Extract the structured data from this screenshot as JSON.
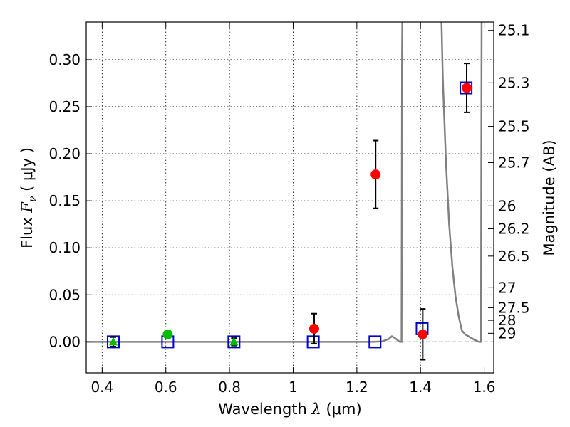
{
  "chart_data": {
    "type": "scatter",
    "xlabel": "Wavelength  λ (μm)",
    "ylabel": "Flux  F_ν  ( μJy )",
    "ylabel_parts": {
      "prefix": "Flux  ",
      "symbol": "F",
      "subscript": "ν",
      "unit": "  ( μJy )"
    },
    "xlabel_parts": {
      "prefix": "Wavelength  ",
      "symbol": "λ",
      "unit": " (μm)"
    },
    "y2label": "Magnitude (AB)",
    "xlim": [
      0.35,
      1.63
    ],
    "ylim": [
      -0.033,
      0.34
    ],
    "grid": true,
    "x_ticks": [
      {
        "value": 0.4,
        "label": "0.4"
      },
      {
        "value": 0.6,
        "label": "0.6"
      },
      {
        "value": 0.8,
        "label": "0.8"
      },
      {
        "value": 1.0,
        "label": "1"
      },
      {
        "value": 1.2,
        "label": "1.2"
      },
      {
        "value": 1.4,
        "label": "1.4"
      },
      {
        "value": 1.6,
        "label": "1.6"
      }
    ],
    "y_ticks": [
      {
        "value": 0.0,
        "label": "0.00"
      },
      {
        "value": 0.05,
        "label": "0.05"
      },
      {
        "value": 0.1,
        "label": "0.10"
      },
      {
        "value": 0.15,
        "label": "0.15"
      },
      {
        "value": 0.2,
        "label": "0.20"
      },
      {
        "value": 0.25,
        "label": "0.25"
      },
      {
        "value": 0.3,
        "label": "0.30"
      }
    ],
    "y2_ticks": [
      {
        "label": "25.1",
        "mag": 25.1
      },
      {
        "label": "25.3",
        "mag": 25.3
      },
      {
        "label": "25.5",
        "mag": 25.5
      },
      {
        "label": "25.7",
        "mag": 25.7
      },
      {
        "label": "26",
        "mag": 26.0
      },
      {
        "label": "26.2",
        "mag": 26.2
      },
      {
        "label": "26.5",
        "mag": 26.5
      },
      {
        "label": "27",
        "mag": 27.0
      },
      {
        "label": "27.5",
        "mag": 27.5
      },
      {
        "label": "28",
        "mag": 28.0
      },
      {
        "label": "29",
        "mag": 29.0
      }
    ],
    "series": [
      {
        "name": "model_template",
        "kind": "line",
        "color": "#808080",
        "x": [
          0.35,
          1.25,
          1.28,
          1.3,
          1.31,
          1.32,
          1.335,
          1.3405,
          1.341,
          1.342,
          1.343
        ],
        "y": [
          0.0,
          0.0,
          0.0005,
          0.003,
          0.006,
          0.004,
          0.0,
          0.0,
          0.12,
          0.3,
          0.34
        ]
      },
      {
        "name": "model_template_red",
        "kind": "line",
        "color": "#808080",
        "x": [
          1.466,
          1.47,
          1.48,
          1.49,
          1.5,
          1.51,
          1.52,
          1.53,
          1.54,
          1.55,
          1.56,
          1.57,
          1.58,
          1.585,
          1.59,
          1.591,
          1.592
        ],
        "y": [
          0.34,
          0.28,
          0.19,
          0.125,
          0.08,
          0.048,
          0.027,
          0.012,
          0.008,
          0.006,
          0.004,
          0.002,
          0.0005,
          0.0,
          0.0,
          0.2,
          0.34
        ]
      },
      {
        "name": "model_photometry",
        "kind": "open_square",
        "color": "#0000cc",
        "x": [
          0.435,
          0.606,
          0.814,
          1.063,
          1.257,
          1.405,
          1.543
        ],
        "y": [
          0.0,
          0.0,
          0.0,
          0.0,
          0.0,
          0.014,
          0.27
        ]
      },
      {
        "name": "observed_red",
        "kind": "filled_circle",
        "color": "#ff0000",
        "x": [
          1.066,
          1.259,
          1.407,
          1.545
        ],
        "y": [
          0.014,
          0.178,
          0.008,
          0.27
        ],
        "yerr": [
          0.016,
          0.036,
          0.027,
          0.026
        ]
      },
      {
        "name": "observed_green_circle",
        "kind": "filled_circle",
        "color": "#00bb00",
        "x": [
          0.606
        ],
        "y": [
          0.008
        ],
        "yerr": [
          0.004
        ]
      },
      {
        "name": "observed_green_triangle",
        "kind": "filled_triangle",
        "color": "#00bb00",
        "x": [
          0.435,
          0.814
        ],
        "y": [
          0.0,
          0.0
        ],
        "yerr": [
          0.005,
          0.004
        ]
      }
    ],
    "colors": {
      "errorbar": "#000000",
      "grid": "#000000",
      "dash": "#000000"
    }
  }
}
